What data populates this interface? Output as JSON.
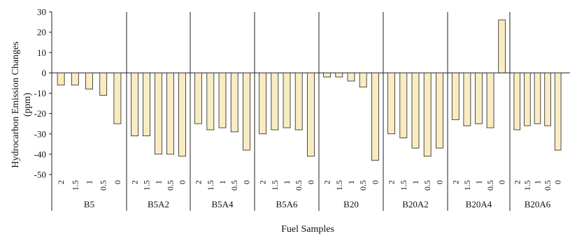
{
  "chart_data": {
    "type": "bar",
    "ylabel": "Hydrocarbon Emission Changes (ppm)",
    "ylabel_lines": [
      "Hydrocarbon Emission Changes",
      "(ppm)"
    ],
    "xlabel": "Fuel Samples",
    "ylim": [
      -50,
      30
    ],
    "yticks": [
      30,
      20,
      10,
      0,
      -10,
      -20,
      -30,
      -40,
      -50
    ],
    "grid": false,
    "legend": "none",
    "bar_color": "#f9ecc2",
    "bar_edge": "#222222",
    "sub_categories": [
      "2",
      "1.5",
      "1",
      "0.5",
      "0"
    ],
    "groups": [
      {
        "name": "B5",
        "values": [
          -6,
          -6,
          -8,
          -11,
          -25
        ]
      },
      {
        "name": "B5A2",
        "values": [
          -31,
          -31,
          -40,
          -40,
          -41
        ]
      },
      {
        "name": "B5A4",
        "values": [
          -25,
          -28,
          -27,
          -29,
          -38
        ]
      },
      {
        "name": "B5A6",
        "values": [
          -30,
          -28,
          -27,
          -28,
          -41
        ]
      },
      {
        "name": "B20",
        "values": [
          -2,
          -2,
          -4,
          -7,
          -43
        ]
      },
      {
        "name": "B20A2",
        "values": [
          -30,
          -32,
          -37,
          -41,
          -37
        ]
      },
      {
        "name": "B20A4",
        "values": [
          -23,
          -26,
          -25,
          -27,
          26
        ]
      },
      {
        "name": "B20A6",
        "values": [
          -28,
          -26,
          -25,
          -26,
          -38
        ]
      }
    ]
  }
}
